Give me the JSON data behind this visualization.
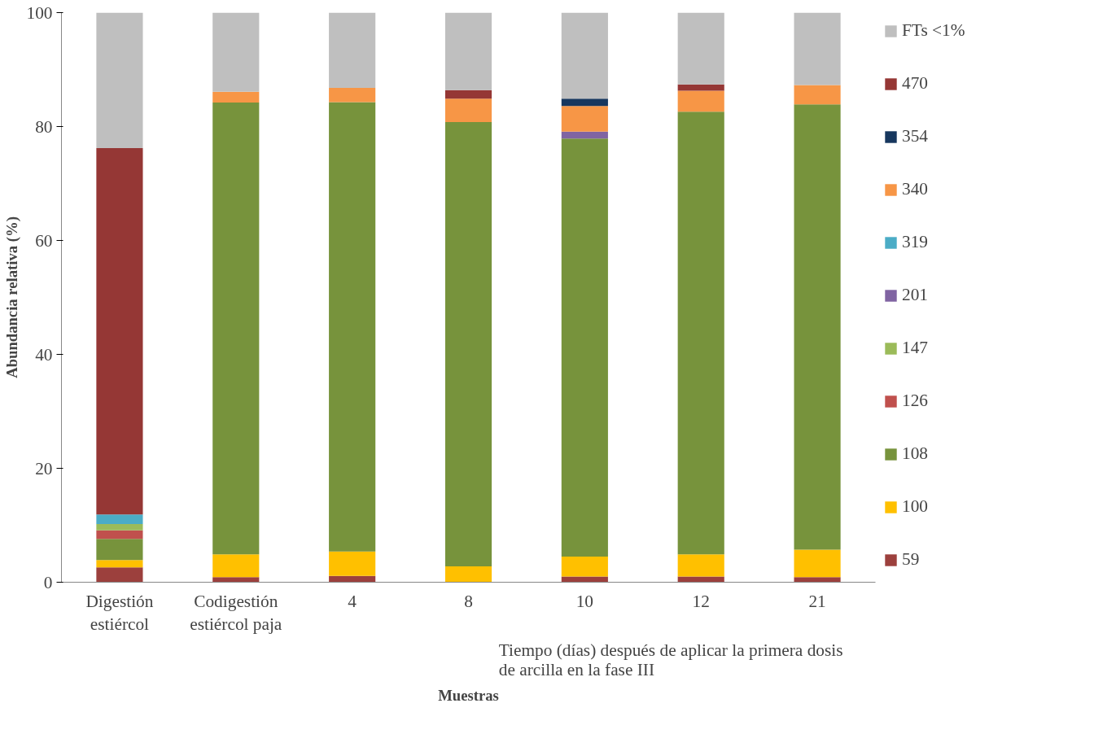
{
  "chart_data": {
    "type": "bar",
    "stacked": true,
    "xlabel": "Muestras",
    "ylabel": "Abundancia relativa (%)",
    "categories": [
      "Digestión\nestiércol",
      "Codigestión\nestiércol paja",
      "4",
      "8",
      "10",
      "12",
      "21"
    ],
    "series": [
      {
        "name": "59",
        "color": "#9c403d",
        "values": [
          2.6,
          0.9,
          1.1,
          0,
          1.0,
          1.0,
          0.9
        ]
      },
      {
        "name": "100",
        "color": "#ffc000",
        "values": [
          1.3,
          4.0,
          4.3,
          2.8,
          3.5,
          3.9,
          4.8
        ]
      },
      {
        "name": "108",
        "color": "#77933c",
        "values": [
          3.7,
          79.3,
          78.9,
          78.0,
          73.4,
          77.7,
          78.2
        ]
      },
      {
        "name": "126",
        "color": "#c0504d",
        "values": [
          1.5,
          0,
          0,
          0,
          0,
          0,
          0
        ]
      },
      {
        "name": "147",
        "color": "#9bbb59",
        "values": [
          1.1,
          0,
          0,
          0,
          0,
          0,
          0
        ]
      },
      {
        "name": "201",
        "color": "#8064a2",
        "values": [
          0,
          0,
          0,
          0,
          1.2,
          0,
          0
        ]
      },
      {
        "name": "319",
        "color": "#4bacc6",
        "values": [
          1.7,
          0,
          0,
          0,
          0,
          0,
          0
        ]
      },
      {
        "name": "340",
        "color": "#f79646",
        "values": [
          0,
          1.9,
          2.5,
          4.1,
          4.5,
          3.7,
          3.4
        ]
      },
      {
        "name": "354",
        "color": "#17375e",
        "values": [
          0,
          0,
          0,
          0,
          1.3,
          0,
          0
        ]
      },
      {
        "name": "470",
        "color": "#953735",
        "values": [
          64.3,
          0,
          0,
          1.5,
          0,
          1.1,
          0
        ]
      },
      {
        "name": "FTs <1%",
        "color": "#bfbfbf",
        "values": [
          23.8,
          13.9,
          13.2,
          13.6,
          15.1,
          12.6,
          12.7
        ]
      }
    ],
    "ylim": [
      0,
      100
    ],
    "yticks": [
      0,
      20,
      40,
      60,
      80,
      100
    ],
    "grid": false,
    "legend": "right",
    "annotations": [
      "Tiempo (días) después de aplicar la primera dosis\nde arcilla en la fase III"
    ]
  }
}
